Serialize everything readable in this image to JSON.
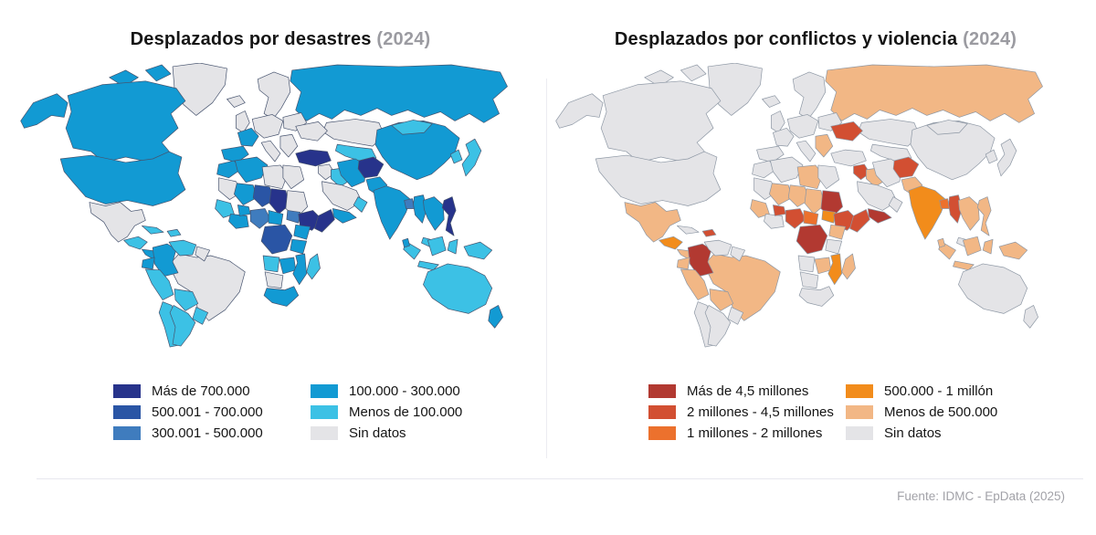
{
  "maps": [
    {
      "id": "disasters",
      "title": "Desplazados por desastres",
      "title_suffix": "(2024)",
      "border_color": "#46536e",
      "legend": [
        {
          "category": "cat1",
          "label": "Más de 700.000",
          "color": "#27338b"
        },
        {
          "category": "cat2",
          "label": "500.001 - 700.000",
          "color": "#2a55a5"
        },
        {
          "category": "cat3",
          "label": "300.001 - 500.000",
          "color": "#3f7cbe"
        },
        {
          "category": "cat4",
          "label": "100.000 - 300.000",
          "color": "#129ad3"
        },
        {
          "category": "cat5",
          "label": "Menos de 100.000",
          "color": "#3cc1e5"
        },
        {
          "category": "nodata",
          "label": "Sin datos",
          "color": "#e4e4e7"
        }
      ],
      "regions": {
        "greenland": "nodata",
        "canada-arctic1": "cat4",
        "canada-arctic2": "cat4",
        "alaska": "cat4",
        "canada": "cat4",
        "usa": "cat4",
        "mexico": "nodata",
        "guatemala": "cat5",
        "panama-cr": "cat4",
        "cuba": "cat5",
        "hispaniola": "cat5",
        "brazil": "nodata",
        "colombia": "cat4",
        "venezuela": "cat5",
        "guyanas": "nodata",
        "ecuador": "cat4",
        "peru": "cat5",
        "bolivia": "cat5",
        "paraguay": "cat5",
        "chile": "cat5",
        "argentina": "cat5",
        "iceland": "nodata",
        "uk": "nodata",
        "scandinavia": "nodata",
        "europe-central": "nodata",
        "east-europe": "nodata",
        "france": "cat4",
        "iberia": "cat4",
        "italy": "nodata",
        "balkans": "nodata",
        "ukraine": "nodata",
        "russia": "cat4",
        "kazakhstan": "nodata",
        "central-asia": "cat5",
        "turkey": "cat1",
        "levant-syria": "nodata",
        "iraq": "cat5",
        "saudi": "nodata",
        "yemen": "cat4",
        "oman": "cat5",
        "iran": "cat4",
        "afghanistan": "cat1",
        "pakistan": "cat4",
        "india": "cat4",
        "bangladesh": "cat3",
        "myanmar": "cat4",
        "china": "cat4",
        "mongolia": "cat5",
        "korea": "cat5",
        "japan": "cat5",
        "indochina": "cat4",
        "malaysia": "cat5",
        "philippines": "cat1",
        "sumatra": "cat5",
        "java": "cat5",
        "borneo": "cat5",
        "sulawesi": "cat5",
        "sri-lanka": "cat4",
        "papua": "cat5",
        "australia": "cat5",
        "new-zealand": "cat4",
        "morocco": "cat4",
        "algeria": "cat4",
        "libya": "nodata",
        "egypt": "nodata",
        "mauritania": "nodata",
        "mali": "cat4",
        "niger": "cat2",
        "chad": "cat1",
        "sudan": "nodata",
        "senegal-guinea": "cat5",
        "ivory-ghana": "cat4",
        "burkina": "cat4",
        "nigeria": "cat3",
        "cameroon": "cat4",
        "south-sudan": "cat3",
        "ethiopia": "cat1",
        "somalia": "cat1",
        "drc": "cat2",
        "uganda-kenya": "cat4",
        "tanzania": "cat4",
        "angola": "cat5",
        "zambia": "cat4",
        "mozambique": "cat4",
        "madagascar": "cat5",
        "namibia-botswana": "nodata",
        "south-africa": "cat4"
      }
    },
    {
      "id": "conflicts",
      "title": "Desplazados por conflictos y violencia",
      "title_suffix": "(2024)",
      "border_color": "#8d97a4",
      "legend": [
        {
          "category": "cat1",
          "label": "Más de 4,5 millones",
          "color": "#b23931"
        },
        {
          "category": "cat2",
          "label": "2 millones - 4,5 millones",
          "color": "#d24f32"
        },
        {
          "category": "cat3",
          "label": "1 millones - 2 millones",
          "color": "#ec712d"
        },
        {
          "category": "cat4",
          "label": "500.000 - 1 millón",
          "color": "#f28c1b"
        },
        {
          "category": "cat5",
          "label": "Menos de 500.000",
          "color": "#f2b785"
        },
        {
          "category": "nodata",
          "label": "Sin datos",
          "color": "#e4e4e7"
        }
      ],
      "regions": {
        "greenland": "nodata",
        "canada-arctic1": "nodata",
        "canada-arctic2": "nodata",
        "alaska": "nodata",
        "canada": "nodata",
        "usa": "nodata",
        "mexico": "cat5",
        "guatemala": "cat4",
        "panama-cr": "cat5",
        "cuba": "nodata",
        "hispaniola": "cat2",
        "brazil": "cat5",
        "colombia": "cat1",
        "venezuela": "nodata",
        "guyanas": "nodata",
        "ecuador": "cat5",
        "peru": "cat5",
        "bolivia": "cat5",
        "paraguay": "nodata",
        "chile": "nodata",
        "argentina": "nodata",
        "iceland": "nodata",
        "uk": "nodata",
        "scandinavia": "nodata",
        "europe-central": "nodata",
        "east-europe": "nodata",
        "france": "nodata",
        "iberia": "nodata",
        "italy": "nodata",
        "balkans": "cat5",
        "ukraine": "cat2",
        "russia": "cat5",
        "kazakhstan": "nodata",
        "central-asia": "nodata",
        "turkey": "nodata",
        "levant-syria": "cat2",
        "iraq": "cat5",
        "saudi": "nodata",
        "yemen": "cat1",
        "oman": "nodata",
        "iran": "nodata",
        "afghanistan": "cat2",
        "pakistan": "cat5",
        "india": "cat4",
        "bangladesh": "cat3",
        "myanmar": "cat2",
        "china": "nodata",
        "mongolia": "nodata",
        "korea": "nodata",
        "japan": "nodata",
        "indochina": "cat5",
        "malaysia": "nodata",
        "philippines": "cat5",
        "sumatra": "cat5",
        "java": "cat5",
        "borneo": "cat5",
        "sulawesi": "cat5",
        "sri-lanka": "cat5",
        "papua": "cat5",
        "australia": "nodata",
        "new-zealand": "nodata",
        "morocco": "nodata",
        "algeria": "nodata",
        "libya": "cat5",
        "egypt": "nodata",
        "mauritania": "nodata",
        "mali": "cat5",
        "niger": "cat5",
        "chad": "cat5",
        "sudan": "cat1",
        "senegal-guinea": "cat5",
        "ivory-ghana": "nodata",
        "burkina": "cat2",
        "nigeria": "cat2",
        "cameroon": "cat3",
        "south-sudan": "cat4",
        "ethiopia": "cat2",
        "somalia": "cat2",
        "drc": "cat1",
        "uganda-kenya": "cat5",
        "tanzania": "nodata",
        "angola": "nodata",
        "zambia": "cat5",
        "mozambique": "cat4",
        "madagascar": "cat5",
        "namibia-botswana": "nodata",
        "south-africa": "nodata"
      }
    }
  ],
  "chart_data": [
    {
      "type": "heatmap",
      "subtype": "choropleth-world-map",
      "title": "Desplazados por desastres (2024)",
      "legend_position": "bottom",
      "categories": [
        "Más de 700.000",
        "500.001 - 700.000",
        "300.001 - 500.000",
        "100.000 - 300.000",
        "Menos de 100.000",
        "Sin datos"
      ],
      "colors": [
        "#27338b",
        "#2a55a5",
        "#3f7cbe",
        "#129ad3",
        "#3cc1e5",
        "#e4e4e7"
      ],
      "highlights": {
        "Más de 700.000": [
          "Turquía",
          "Afganistán",
          "Filipinas",
          "Chad",
          "Etiopía",
          "Somalia"
        ],
        "500.001 - 700.000": [
          "Níger",
          "RD Congo"
        ],
        "300.001 - 500.000": [
          "Nigeria",
          "Sudán del Sur",
          "Bangladés"
        ],
        "100.000 - 300.000": [
          "EE. UU.",
          "Canadá",
          "Rusia",
          "China",
          "India",
          "Colombia"
        ],
        "Sin datos": [
          "Groenlandia",
          "México",
          "Brasil",
          "Sudán",
          "Libia",
          "Egipto"
        ]
      }
    },
    {
      "type": "heatmap",
      "subtype": "choropleth-world-map",
      "title": "Desplazados por conflictos y violencia (2024)",
      "legend_position": "bottom",
      "categories": [
        "Más de 4,5 millones",
        "2 millones - 4,5 millones",
        "1 millones - 2 millones",
        "500.000 - 1 millón",
        "Menos de 500.000",
        "Sin datos"
      ],
      "colors": [
        "#b23931",
        "#d24f32",
        "#ec712d",
        "#f28c1b",
        "#f2b785",
        "#e4e4e7"
      ],
      "highlights": {
        "Más de 4,5 millones": [
          "Colombia",
          "Sudán",
          "RD Congo",
          "Yemen"
        ],
        "2 millones - 4,5 millones": [
          "Ucrania",
          "Siria",
          "Afganistán",
          "Myanmar",
          "Nigeria",
          "Etiopía",
          "Somalia",
          "Burkina Faso"
        ],
        "1 millones - 2 millones": [
          "Bangladés",
          "Camerún"
        ],
        "500.000 - 1 millón": [
          "India",
          "Sudán del Sur",
          "Mozambique",
          "Guatemala"
        ],
        "Menos de 500.000": [
          "Rusia",
          "México",
          "Brasil",
          "Indonesia",
          "Mali",
          "Níger",
          "Chad"
        ],
        "Sin datos": [
          "EE. UU.",
          "Canadá",
          "China",
          "Australia",
          "Europa occidental"
        ]
      }
    }
  ],
  "footer": {
    "source": "Fuente: IDMC - EpData (2025)"
  }
}
